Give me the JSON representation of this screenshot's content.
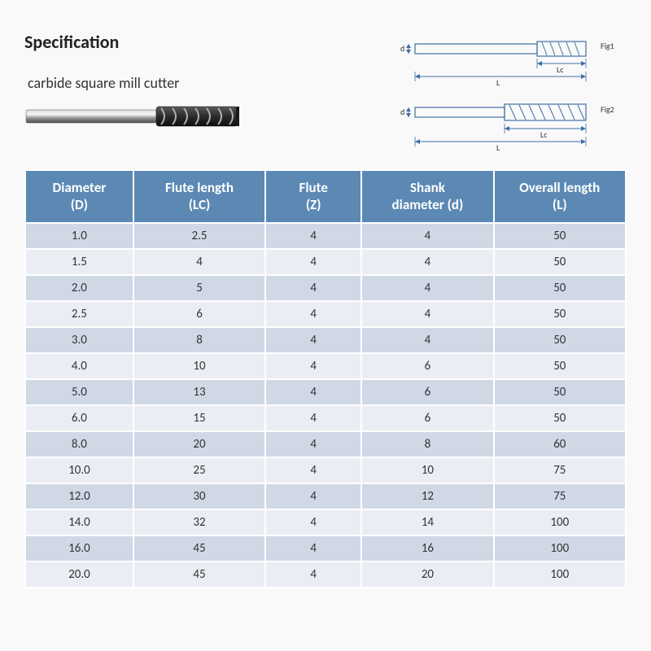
{
  "header": {
    "title": "Specification",
    "product_name": "carbide square mill cutter"
  },
  "diagram": {
    "fig1_label": "Fig1",
    "fig2_label": "Fig2",
    "dim_L": "L",
    "dim_Lc": "Lc",
    "dim_d": "d",
    "stroke": "#3f6ea5",
    "text_color": "#333333"
  },
  "table": {
    "columns": [
      {
        "line1": "Diameter",
        "line2": "(D)",
        "width": "18%"
      },
      {
        "line1": "Flute length",
        "line2": "(LC)",
        "width": "22%"
      },
      {
        "line1": "Flute",
        "line2": "(Z)",
        "width": "16%"
      },
      {
        "line1": "Shank",
        "line2": "diameter (d)",
        "width": "22%"
      },
      {
        "line1": "Overall length",
        "line2": "(L)",
        "width": "22%"
      }
    ],
    "rows": [
      [
        "1.0",
        "2.5",
        "4",
        "4",
        "50"
      ],
      [
        "1.5",
        "4",
        "4",
        "4",
        "50"
      ],
      [
        "2.0",
        "5",
        "4",
        "4",
        "50"
      ],
      [
        "2.5",
        "6",
        "4",
        "4",
        "50"
      ],
      [
        "3.0",
        "8",
        "4",
        "4",
        "50"
      ],
      [
        "4.0",
        "10",
        "4",
        "6",
        "50"
      ],
      [
        "5.0",
        "13",
        "4",
        "6",
        "50"
      ],
      [
        "6.0",
        "15",
        "4",
        "6",
        "50"
      ],
      [
        "8.0",
        "20",
        "4",
        "8",
        "60"
      ],
      [
        "10.0",
        "25",
        "4",
        "10",
        "75"
      ],
      [
        "12.0",
        "30",
        "4",
        "12",
        "75"
      ],
      [
        "14.0",
        "32",
        "4",
        "14",
        "100"
      ],
      [
        "16.0",
        "45",
        "4",
        "16",
        "100"
      ],
      [
        "20.0",
        "45",
        "4",
        "20",
        "100"
      ]
    ],
    "header_bg": "#5b89b4",
    "header_fg": "#ffffff",
    "row_color_a": "#d0d8e6",
    "row_color_b": "#eaedf3",
    "border_color": "#ffffff",
    "cell_fontsize": 15,
    "header_fontsize": 17
  }
}
